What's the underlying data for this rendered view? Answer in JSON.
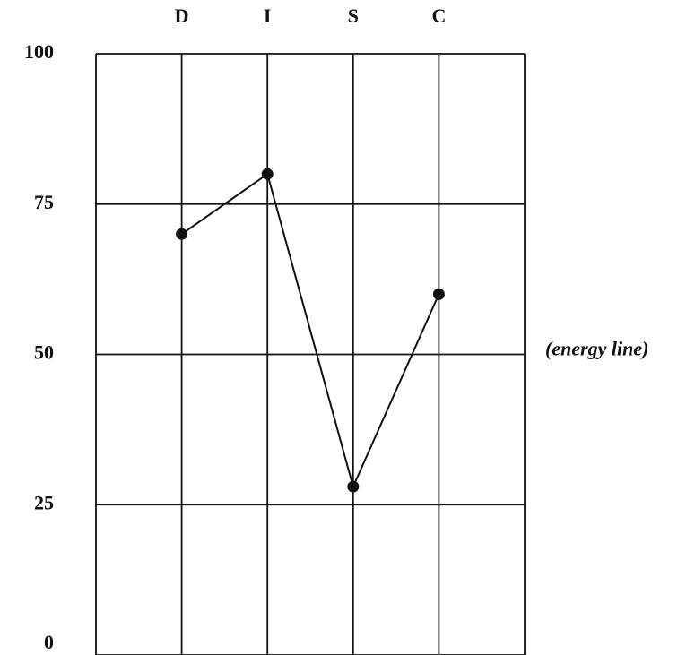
{
  "chart_data": {
    "type": "line",
    "categories": [
      "D",
      "I",
      "S",
      "C"
    ],
    "series": [
      {
        "name": null,
        "color": "#111111",
        "values": [
          70,
          80,
          28,
          60
        ]
      }
    ],
    "ylim": [
      0,
      100
    ],
    "yticks": [
      0,
      25,
      50,
      75,
      100
    ],
    "grid": true,
    "annotation": "(energy line)",
    "annotation_value": 50
  }
}
